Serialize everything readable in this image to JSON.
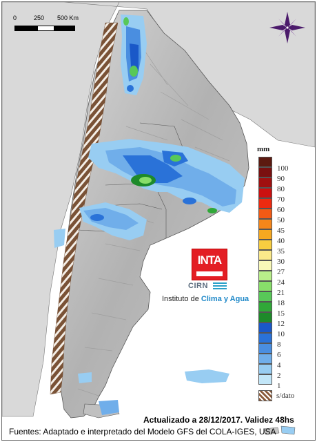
{
  "scale": {
    "labels": [
      "0",
      "250",
      "500 Km"
    ]
  },
  "legend": {
    "unit": "mm",
    "items": [
      {
        "label": "100",
        "color": "#5c1a10"
      },
      {
        "label": "90",
        "color": "#7a1010"
      },
      {
        "label": "80",
        "color": "#a01010"
      },
      {
        "label": "70",
        "color": "#cc1010"
      },
      {
        "label": "60",
        "color": "#ee2a10"
      },
      {
        "label": "50",
        "color": "#f25a14"
      },
      {
        "label": "45",
        "color": "#f5861a"
      },
      {
        "label": "40",
        "color": "#f6a820"
      },
      {
        "label": "35",
        "color": "#f8cd40"
      },
      {
        "label": "30",
        "color": "#fbe98a"
      },
      {
        "label": "27",
        "color": "#f8f8b8"
      },
      {
        "label": "24",
        "color": "#b8ee8a"
      },
      {
        "label": "21",
        "color": "#88de6a"
      },
      {
        "label": "18",
        "color": "#58c858"
      },
      {
        "label": "15",
        "color": "#30a838"
      },
      {
        "label": "12",
        "color": "#1e8a2a"
      },
      {
        "label": "10",
        "color": "#1a58c8"
      },
      {
        "label": "8",
        "color": "#2a72d8"
      },
      {
        "label": "6",
        "color": "#4a8ee0"
      },
      {
        "label": "4",
        "color": "#70aeea"
      },
      {
        "label": "2",
        "color": "#98cdf2"
      },
      {
        "label": "1",
        "color": "#c2e6f8"
      }
    ],
    "nodata_label": "s/dato"
  },
  "logo": {
    "inta": "INTA",
    "cirn": "CIRN",
    "institute_prefix": "Instituto de ",
    "institute_highlight": "Clima y Agua"
  },
  "footer": {
    "updated": "Actualizado a 28/12/2017. Validez 48hs",
    "sources": "Fuentes: Adaptado e interpretado del Modelo GFS del COLA-IGES, USA"
  },
  "colors": {
    "land": "#b9b9b9",
    "ocean": "#ffffff",
    "andes": "#7a5236",
    "compass": "#4b1a6b"
  }
}
